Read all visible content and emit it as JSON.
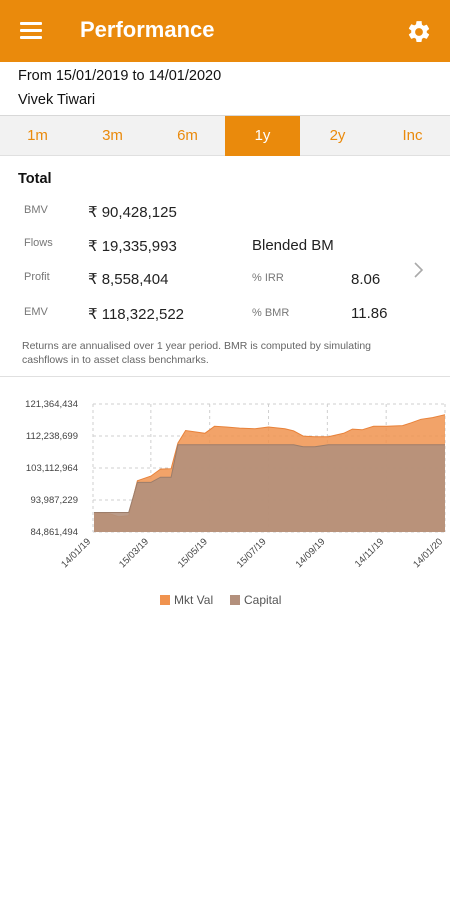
{
  "appbar": {
    "title": "Performance",
    "menu_icon": "menu-icon",
    "settings_icon": "gear-icon",
    "color": "#ea8a0c"
  },
  "header": {
    "period": "From 15/01/2019 to 14/01/2020",
    "user": "Vivek Tiwari"
  },
  "tabs": [
    {
      "label": "1m",
      "active": false
    },
    {
      "label": "3m",
      "active": false
    },
    {
      "label": "6m",
      "active": false
    },
    {
      "label": "1y",
      "active": true
    },
    {
      "label": "2y",
      "active": false
    },
    {
      "label": "Inc",
      "active": false
    }
  ],
  "summary": {
    "title": "Total",
    "bmv_label": "BMV",
    "bmv_value": "₹ 90,428,125",
    "flows_label": "Flows",
    "flows_value": "₹ 19,335,993",
    "blended_label": "Blended BM",
    "profit_label": "Profit",
    "profit_value": "₹ 8,558,404",
    "irr_label": "% IRR",
    "irr_value": "8.06",
    "emv_label": "EMV",
    "emv_value": "₹ 118,322,522",
    "bmr_label": "% BMR",
    "bmr_value": "11.86",
    "note": "Returns are annualised over 1 year period. BMR is computed by simulating cashflows in to asset class benchmarks."
  },
  "chart_data": {
    "type": "area",
    "ylim": [
      84861494,
      121364434
    ],
    "y_ticks": [
      "84,861,494",
      "93,987,229",
      "103,112,964",
      "112,238,699",
      "121,364,434"
    ],
    "x_ticks": [
      "14/01/19",
      "15/03/19",
      "15/05/19",
      "15/07/19",
      "14/09/19",
      "14/11/19",
      "14/01/20"
    ],
    "x": [
      "2019-01-15",
      "2019-02-01",
      "2019-02-10",
      "2019-02-20",
      "2019-03-01",
      "2019-03-15",
      "2019-03-25",
      "2019-04-05",
      "2019-04-12",
      "2019-04-20",
      "2019-05-10",
      "2019-05-20",
      "2019-06-01",
      "2019-06-15",
      "2019-07-01",
      "2019-07-15",
      "2019-08-01",
      "2019-08-10",
      "2019-08-20",
      "2019-09-01",
      "2019-09-15",
      "2019-10-01",
      "2019-10-10",
      "2019-10-20",
      "2019-11-01",
      "2019-11-15",
      "2019-12-01",
      "2019-12-10",
      "2019-12-20",
      "2020-01-01",
      "2020-01-14"
    ],
    "series": [
      {
        "name": "Mkt Val",
        "color": "#f0934f",
        "values": [
          90428125,
          90000000,
          89200000,
          89500000,
          99500000,
          100800000,
          102800000,
          102900000,
          110200000,
          113800000,
          113000000,
          115000000,
          114800000,
          114500000,
          114300000,
          114800000,
          114300000,
          113700000,
          112200000,
          112000000,
          112000000,
          113000000,
          114200000,
          114000000,
          115000000,
          115000000,
          115200000,
          116000000,
          117000000,
          117500000,
          118322522
        ]
      },
      {
        "name": "Capital",
        "color": "#b3907c",
        "values": [
          90428125,
          90428125,
          90428125,
          90428125,
          99000000,
          99000000,
          100500000,
          100500000,
          109764118,
          109764118,
          109764118,
          109764118,
          109764118,
          109764118,
          109764118,
          109764118,
          109764118,
          109764118,
          109200000,
          109200000,
          109764118,
          109764118,
          109764118,
          109764118,
          109764118,
          109764118,
          109764118,
          109764118,
          109764118,
          109764118,
          109764118
        ]
      }
    ],
    "grid": true,
    "legend": "bottom-center"
  }
}
